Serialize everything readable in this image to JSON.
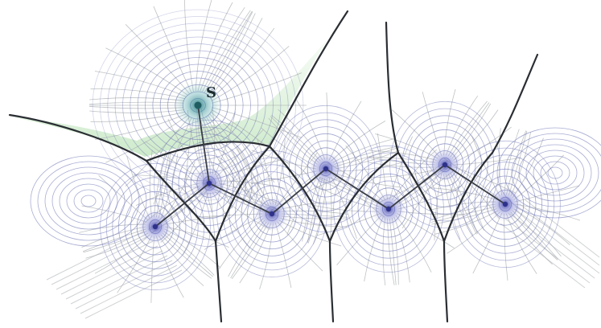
{
  "labels": {
    "source": "S"
  },
  "colors": {
    "contour_blue": "#6f76b6",
    "gradient_gray": "#a9adb0",
    "boundary_dark": "#2a2e33",
    "source_halo": "#3f8f96",
    "node_halo": "#7b7fd0",
    "region_green": "#8fd08a"
  }
}
